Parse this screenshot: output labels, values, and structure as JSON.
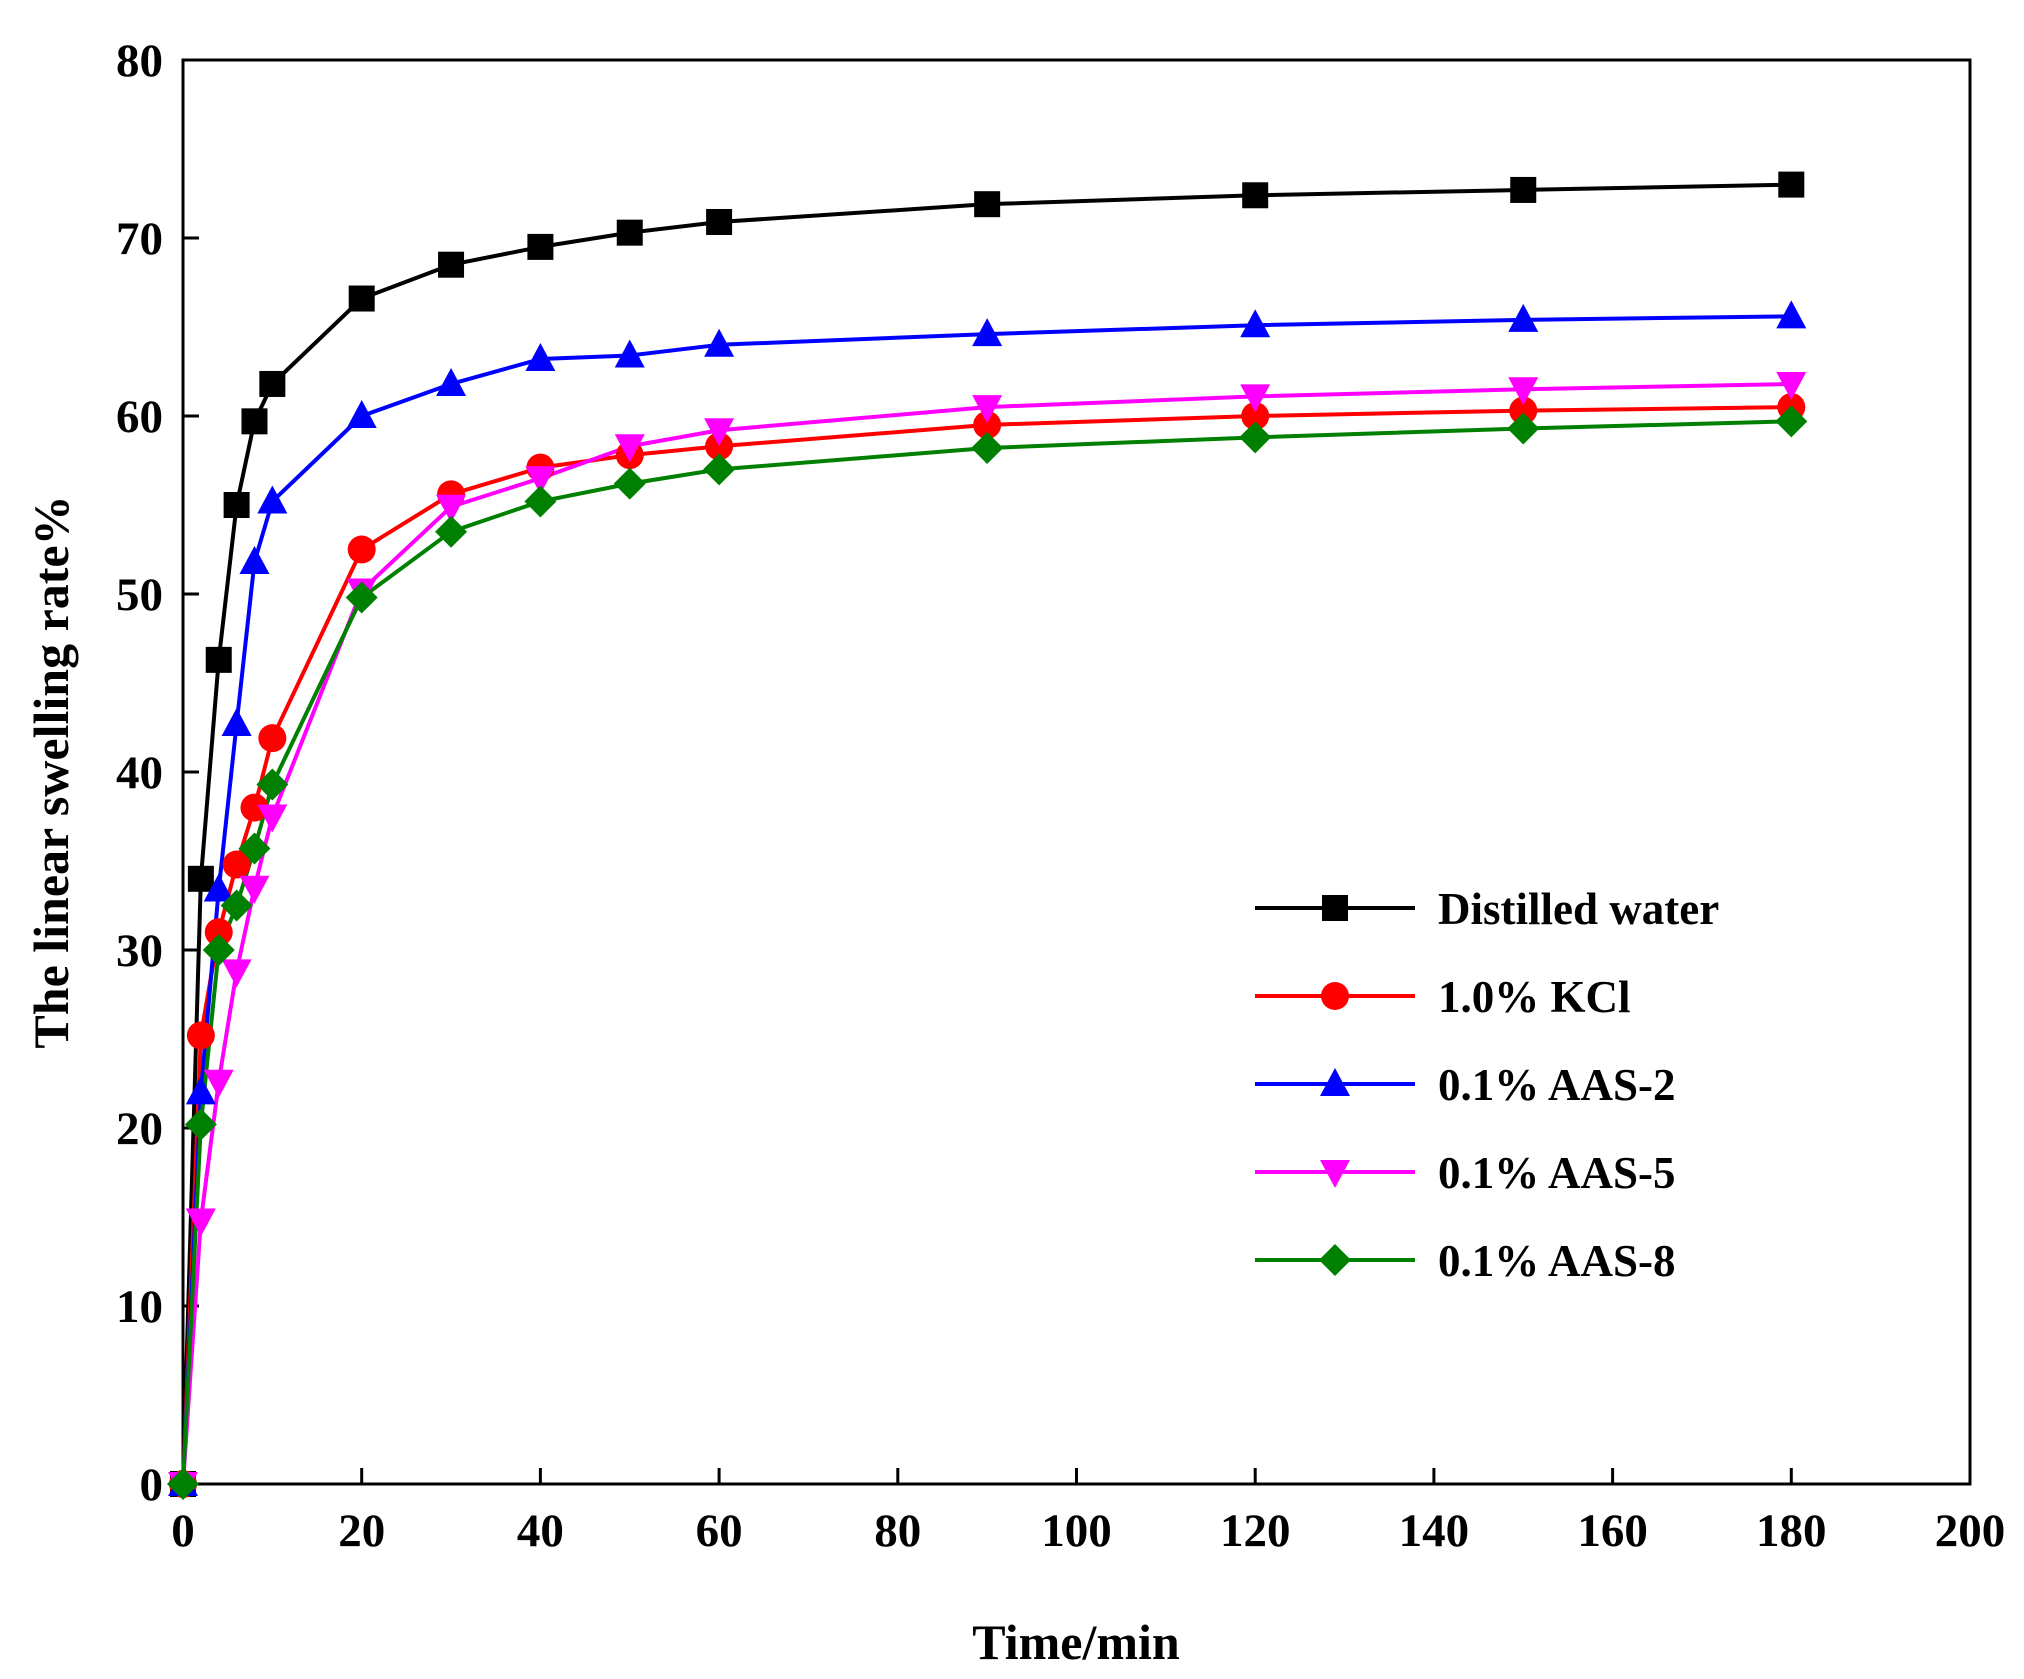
{
  "chart_data": {
    "type": "line",
    "title": "",
    "xlabel": "Time/min",
    "ylabel": "The linear swelling  rate%",
    "xlim": [
      0,
      200
    ],
    "ylim": [
      0,
      80
    ],
    "xticks": [
      0,
      20,
      40,
      60,
      80,
      100,
      120,
      140,
      160,
      180,
      200
    ],
    "yticks": [
      0,
      10,
      20,
      30,
      40,
      50,
      60,
      70,
      80
    ],
    "grid": false,
    "legend_position": "center-right",
    "x": [
      0,
      2,
      4,
      6,
      8,
      10,
      20,
      30,
      40,
      50,
      60,
      90,
      120,
      150,
      180
    ],
    "series": [
      {
        "name": "Distilled water",
        "color": "#000000",
        "marker": "square",
        "values": [
          0,
          34,
          46.3,
          55,
          59.7,
          61.8,
          66.6,
          68.5,
          69.5,
          70.3,
          70.9,
          71.9,
          72.4,
          72.7,
          73
        ]
      },
      {
        "name": "1.0% KCl",
        "color": "#ff0000",
        "marker": "circle",
        "values": [
          0,
          25.2,
          31,
          34.8,
          38,
          41.9,
          52.5,
          55.6,
          57.1,
          57.8,
          58.3,
          59.5,
          60,
          60.3,
          60.5
        ]
      },
      {
        "name": "0.1% AAS-2",
        "color": "#0000ff",
        "marker": "triangle-up",
        "values": [
          0,
          22,
          33.4,
          42.7,
          51.8,
          55.2,
          60,
          61.8,
          63.2,
          63.4,
          64,
          64.6,
          65.1,
          65.4,
          65.6
        ]
      },
      {
        "name": "0.1% AAS-5",
        "color": "#ff00ff",
        "marker": "triangle-down",
        "values": [
          0,
          14.8,
          22.6,
          28.8,
          33.5,
          37.5,
          50.2,
          54.9,
          56.5,
          58.3,
          59.2,
          60.5,
          61.1,
          61.5,
          61.8
        ]
      },
      {
        "name": "0.1% AAS-8",
        "color": "#008000",
        "marker": "diamond",
        "values": [
          0,
          20.2,
          30,
          32.5,
          35.7,
          39.3,
          49.8,
          53.5,
          55.2,
          56.2,
          57,
          58.2,
          58.8,
          59.3,
          59.7
        ]
      }
    ]
  }
}
